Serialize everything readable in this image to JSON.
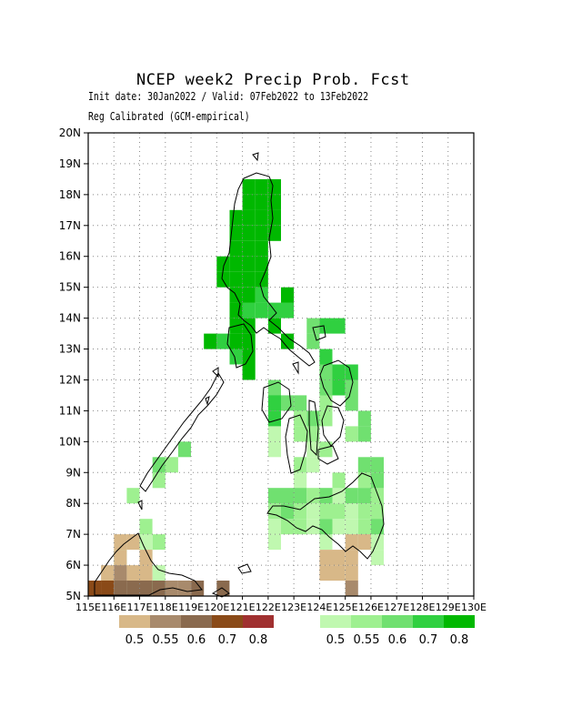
{
  "title": "NCEP week2 Precip Prob. Fcst",
  "subtitle": "Init date: 30Jan2022 / Valid: 07Feb2022 to 13Feb2022",
  "subtitle2": "Reg Calibrated (GCM-empirical)",
  "map": {
    "lon_range": [
      115,
      130
    ],
    "lat_range": [
      5,
      20
    ],
    "y_ticks": [
      "5N",
      "6N",
      "7N",
      "8N",
      "9N",
      "10N",
      "11N",
      "12N",
      "13N",
      "14N",
      "15N",
      "16N",
      "17N",
      "18N",
      "19N",
      "20N"
    ],
    "x_ticks": [
      "115E",
      "116E",
      "117E",
      "118E",
      "119E",
      "120E",
      "121E",
      "122E",
      "123E",
      "124E",
      "125E",
      "126E",
      "127E",
      "128E",
      "129E",
      "130E"
    ],
    "grid": "dotted",
    "cells": {
      "wet_0.5": [
        [
          122.25,
          10.25
        ],
        [
          122.25,
          9.75
        ],
        [
          123.75,
          9.75
        ],
        [
          123.75,
          9.25
        ],
        [
          123.25,
          8.75
        ],
        [
          123.25,
          8.25
        ],
        [
          124.75,
          8.25
        ],
        [
          123.75,
          7.75
        ],
        [
          122.25,
          7.25
        ],
        [
          122.25,
          6.75
        ],
        [
          124.25,
          6.75
        ],
        [
          125.75,
          6.75
        ],
        [
          126.25,
          6.75
        ],
        [
          126.25,
          6.25
        ],
        [
          117.25,
          6.75
        ],
        [
          117.25,
          6.25
        ],
        [
          116.25,
          6.25
        ],
        [
          117.75,
          5.75
        ],
        [
          117.25,
          5.25
        ],
        [
          123.75,
          7.25
        ],
        [
          124.75,
          7.25
        ],
        [
          125.25,
          7.25
        ],
        [
          125.25,
          7.75
        ],
        [
          126.25,
          7.25
        ]
      ],
      "wet_0.55": [
        [
          116.75,
          8.25
        ],
        [
          117.75,
          8.75
        ],
        [
          118.25,
          9.25
        ],
        [
          117.25,
          7.25
        ],
        [
          117.75,
          6.75
        ],
        [
          117.75,
          5.25
        ],
        [
          123.25,
          10.75
        ],
        [
          123.25,
          10.25
        ],
        [
          123.75,
          10.25
        ],
        [
          124.25,
          9.75
        ],
        [
          123.25,
          9.25
        ],
        [
          123.25,
          7.75
        ],
        [
          123.75,
          8.25
        ],
        [
          122.25,
          7.75
        ],
        [
          122.75,
          7.25
        ],
        [
          123.25,
          7.25
        ],
        [
          124.25,
          7.75
        ],
        [
          124.75,
          7.75
        ],
        [
          125.75,
          7.25
        ],
        [
          125.75,
          7.75
        ],
        [
          126.25,
          7.75
        ],
        [
          126.25,
          8.25
        ],
        [
          125.75,
          8.75
        ],
        [
          124.75,
          8.75
        ],
        [
          124.25,
          10.75
        ],
        [
          124.25,
          11.25
        ],
        [
          124.75,
          11.75
        ],
        [
          125.25,
          10.25
        ]
      ],
      "wet_0.6": [
        [
          118.75,
          9.75
        ],
        [
          117.75,
          9.25
        ],
        [
          122.75,
          11.25
        ],
        [
          123.25,
          11.25
        ],
        [
          123.75,
          10.75
        ],
        [
          124.25,
          12.25
        ],
        [
          124.25,
          11.75
        ],
        [
          125.25,
          11.75
        ],
        [
          125.25,
          11.25
        ],
        [
          125.75,
          10.75
        ],
        [
          125.75,
          10.25
        ],
        [
          123.75,
          13.75
        ],
        [
          123.75,
          13.25
        ],
        [
          122.25,
          8.25
        ],
        [
          122.75,
          8.25
        ],
        [
          122.75,
          7.75
        ],
        [
          123.25,
          8.25
        ],
        [
          124.25,
          8.25
        ],
        [
          124.25,
          7.25
        ],
        [
          126.25,
          8.75
        ],
        [
          126.25,
          7.25
        ],
        [
          125.25,
          8.25
        ],
        [
          125.75,
          8.25
        ],
        [
          126.25,
          9.25
        ],
        [
          125.75,
          9.25
        ],
        [
          122.25,
          11.75
        ]
      ],
      "wet_0.7": [
        [
          121.25,
          14.25
        ],
        [
          121.75,
          14.75
        ],
        [
          122.25,
          14.25
        ],
        [
          122.75,
          14.25
        ],
        [
          124.25,
          13.75
        ],
        [
          124.75,
          13.75
        ],
        [
          124.25,
          12.75
        ],
        [
          124.75,
          12.25
        ],
        [
          124.75,
          11.75
        ],
        [
          125.25,
          12.25
        ],
        [
          120.25,
          13.25
        ],
        [
          120.75,
          12.75
        ],
        [
          122.25,
          11.25
        ],
        [
          122.25,
          10.75
        ],
        [
          121.75,
          14.25
        ]
      ],
      "wet_0.8": [
        [
          121.25,
          18.25
        ],
        [
          121.75,
          18.25
        ],
        [
          122.25,
          18.25
        ],
        [
          121.25,
          17.75
        ],
        [
          121.75,
          17.75
        ],
        [
          122.25,
          17.75
        ],
        [
          120.75,
          17.25
        ],
        [
          121.25,
          17.25
        ],
        [
          121.75,
          17.25
        ],
        [
          122.25,
          17.25
        ],
        [
          120.75,
          16.75
        ],
        [
          121.25,
          16.75
        ],
        [
          121.75,
          16.75
        ],
        [
          122.25,
          16.75
        ],
        [
          120.75,
          16.25
        ],
        [
          121.25,
          16.25
        ],
        [
          121.75,
          16.25
        ],
        [
          120.25,
          15.75
        ],
        [
          120.75,
          15.75
        ],
        [
          121.25,
          15.75
        ],
        [
          121.75,
          15.75
        ],
        [
          120.25,
          15.25
        ],
        [
          120.75,
          15.25
        ],
        [
          121.25,
          15.25
        ],
        [
          121.75,
          15.25
        ],
        [
          120.75,
          14.75
        ],
        [
          121.25,
          14.75
        ],
        [
          120.75,
          14.25
        ],
        [
          120.75,
          13.75
        ],
        [
          121.25,
          13.75
        ],
        [
          119.75,
          13.25
        ],
        [
          120.75,
          13.25
        ],
        [
          121.25,
          13.25
        ],
        [
          121.25,
          12.75
        ],
        [
          121.25,
          12.25
        ],
        [
          122.75,
          13.25
        ],
        [
          122.25,
          13.75
        ],
        [
          122.75,
          14.75
        ]
      ],
      "dry_0.5": [
        [
          125.25,
          6.75
        ],
        [
          125.75,
          6.75
        ],
        [
          124.25,
          6.25
        ],
        [
          124.75,
          6.25
        ],
        [
          125.25,
          6.25
        ],
        [
          124.25,
          5.75
        ],
        [
          124.75,
          5.75
        ],
        [
          125.25,
          5.75
        ],
        [
          116.25,
          6.75
        ],
        [
          116.75,
          6.75
        ],
        [
          116.25,
          6.25
        ],
        [
          116.75,
          5.75
        ],
        [
          117.25,
          5.75
        ],
        [
          117.25,
          6.25
        ],
        [
          115.75,
          5.75
        ]
      ],
      "dry_0.55": [
        [
          116.25,
          5.75
        ],
        [
          118.25,
          5.25
        ],
        [
          118.75,
          5.25
        ],
        [
          115.75,
          5.25
        ],
        [
          125.25,
          5.25
        ]
      ],
      "dry_0.6": [
        [
          116.25,
          5.25
        ],
        [
          116.75,
          5.25
        ],
        [
          117.25,
          5.25
        ],
        [
          117.75,
          5.25
        ],
        [
          119.25,
          5.25
        ],
        [
          120.25,
          5.25
        ]
      ],
      "dry_0.7": [
        [
          115.25,
          5.25
        ],
        [
          115.75,
          5.25
        ]
      ]
    }
  },
  "legend_dry": {
    "labels": [
      "0.5",
      "0.55",
      "0.6",
      "0.7",
      "0.8"
    ],
    "colors": [
      "#d8b888",
      "#a88a6c",
      "#8a6a4e",
      "#8a4a18",
      "#a03030"
    ]
  },
  "legend_wet": {
    "labels": [
      "0.5",
      "0.55",
      "0.6",
      "0.7",
      "0.8"
    ],
    "colors": [
      "#c0f8b0",
      "#9ef090",
      "#70e070",
      "#30d040",
      "#00b800"
    ]
  }
}
